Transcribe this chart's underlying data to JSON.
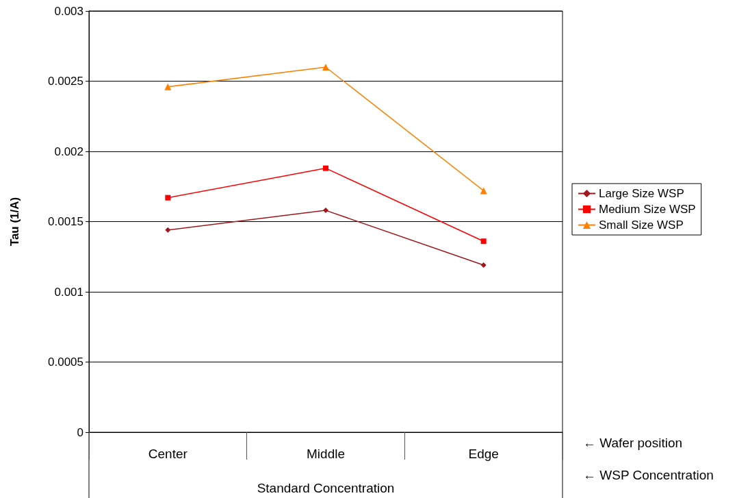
{
  "chart_data": {
    "type": "line",
    "ylabel": "Tau (1/A)",
    "xlabel": "Standard Concentration",
    "categories": [
      "Center",
      "Middle",
      "Edge"
    ],
    "series": [
      {
        "name": "Large Size WSP",
        "color": "#a0161c",
        "marker": "diamond",
        "values": [
          0.00144,
          0.00158,
          0.00119
        ]
      },
      {
        "name": "Medium Size WSP",
        "color": "#ff0000",
        "marker": "square",
        "values": [
          0.00167,
          0.00188,
          0.00136
        ]
      },
      {
        "name": "Small Size WSP",
        "color": "#ff8000",
        "marker": "triangle",
        "values": [
          0.00246,
          0.0026,
          0.00172
        ]
      }
    ],
    "ylim": [
      0,
      0.003
    ],
    "yticks": [
      0,
      0.0005,
      0.001,
      0.0015,
      0.002,
      0.0025,
      0.003
    ],
    "grid": "y",
    "legend": "right",
    "annotations": [
      "← Wafer position",
      "← WSP Concentration"
    ]
  }
}
